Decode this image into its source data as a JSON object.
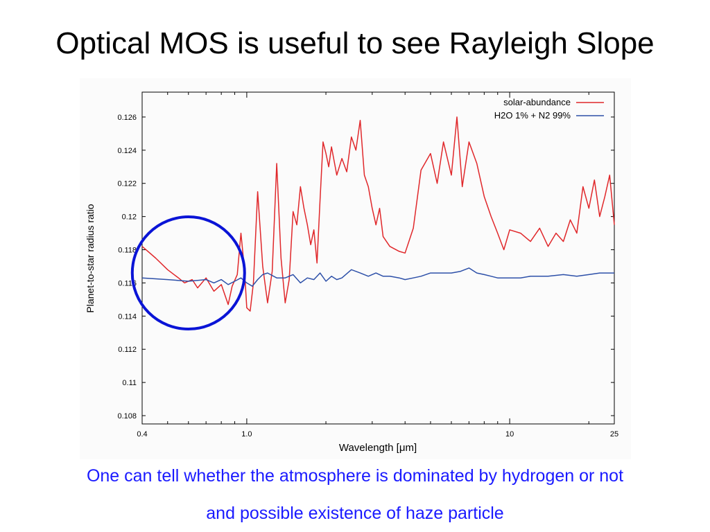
{
  "slide": {
    "title": "Optical MOS is useful to see Rayleigh Slope",
    "caption_line1": "One can tell whether the atmosphere is dominated by hydrogen or not",
    "caption_line2": "and possible existence of haze particle"
  },
  "colors": {
    "red_series": "#e0272a",
    "blue_series": "#2c4fa8",
    "highlight_circle": "#0a14d6",
    "caption": "#1a1aff"
  },
  "chart_data": {
    "type": "line",
    "xscale": "log",
    "xlabel": "Wavelength [μm]",
    "ylabel": "Planet-to-star radius ratio",
    "xlim": [
      0.4,
      25
    ],
    "ylim": [
      0.1075,
      0.1275
    ],
    "xticks": [
      0.4,
      1.0,
      10,
      25
    ],
    "xtick_labels": [
      "0.4",
      "1.0",
      "10",
      "25"
    ],
    "yticks": [
      0.108,
      0.11,
      0.112,
      0.114,
      0.116,
      0.118,
      0.12,
      0.122,
      0.124,
      0.126
    ],
    "ytick_labels": [
      "0.108",
      "0.11",
      "0.112",
      "0.114",
      "0.116",
      "0.118",
      "0.12",
      "0.122",
      "0.124",
      "0.126"
    ],
    "grid": false,
    "legend_position": "top-right",
    "series": [
      {
        "name": "solar-abundance",
        "color": "#e0272a",
        "x": [
          0.4,
          0.45,
          0.5,
          0.55,
          0.58,
          0.62,
          0.65,
          0.7,
          0.75,
          0.8,
          0.85,
          0.88,
          0.92,
          0.95,
          0.98,
          1.0,
          1.03,
          1.06,
          1.1,
          1.15,
          1.2,
          1.25,
          1.3,
          1.35,
          1.4,
          1.45,
          1.5,
          1.55,
          1.6,
          1.65,
          1.7,
          1.75,
          1.8,
          1.85,
          1.9,
          1.95,
          2.0,
          2.05,
          2.1,
          2.2,
          2.3,
          2.4,
          2.5,
          2.6,
          2.7,
          2.8,
          2.9,
          3.0,
          3.1,
          3.2,
          3.3,
          3.5,
          3.8,
          4.0,
          4.3,
          4.6,
          5.0,
          5.3,
          5.6,
          6.0,
          6.3,
          6.6,
          7.0,
          7.5,
          8.0,
          8.5,
          9.0,
          9.5,
          10.0,
          11.0,
          12.0,
          13.0,
          14.0,
          15.0,
          16.0,
          17.0,
          18.0,
          19.0,
          20.0,
          21.0,
          22.0,
          23.0,
          24.0,
          25.0
        ],
        "y": [
          0.1182,
          0.1175,
          0.1168,
          0.1163,
          0.116,
          0.1162,
          0.1157,
          0.1163,
          0.1155,
          0.1159,
          0.1147,
          0.1158,
          0.1165,
          0.119,
          0.1168,
          0.1145,
          0.1143,
          0.116,
          0.1215,
          0.117,
          0.1148,
          0.1167,
          0.1232,
          0.1175,
          0.1148,
          0.1162,
          0.1203,
          0.1195,
          0.1218,
          0.1205,
          0.1195,
          0.1183,
          0.1192,
          0.1172,
          0.121,
          0.1245,
          0.1238,
          0.123,
          0.1242,
          0.1225,
          0.1235,
          0.1227,
          0.1248,
          0.124,
          0.1258,
          0.1225,
          0.1218,
          0.1205,
          0.1195,
          0.1205,
          0.1188,
          0.1182,
          0.1179,
          0.1178,
          0.1193,
          0.1228,
          0.1238,
          0.122,
          0.1245,
          0.1225,
          0.126,
          0.1218,
          0.1245,
          0.1232,
          0.1212,
          0.12,
          0.119,
          0.118,
          0.1192,
          0.119,
          0.1185,
          0.1193,
          0.1182,
          0.119,
          0.1185,
          0.1198,
          0.119,
          0.1218,
          0.1205,
          0.1222,
          0.12,
          0.1212,
          0.1225,
          0.1195
        ]
      },
      {
        "name": "H2O 1% + N2 99%",
        "color": "#2c4fa8",
        "x": [
          0.4,
          0.5,
          0.6,
          0.7,
          0.75,
          0.8,
          0.85,
          0.9,
          0.95,
          1.0,
          1.05,
          1.1,
          1.15,
          1.2,
          1.3,
          1.4,
          1.5,
          1.6,
          1.7,
          1.8,
          1.9,
          2.0,
          2.1,
          2.2,
          2.3,
          2.5,
          2.7,
          2.9,
          3.1,
          3.3,
          3.5,
          3.8,
          4.0,
          4.3,
          4.6,
          5.0,
          5.5,
          6.0,
          6.5,
          7.0,
          7.5,
          8.0,
          8.5,
          9.0,
          10.0,
          11.0,
          12.0,
          14.0,
          16.0,
          18.0,
          20.0,
          22.0,
          25.0
        ],
        "y": [
          0.1163,
          0.1162,
          0.1161,
          0.1162,
          0.116,
          0.1162,
          0.1159,
          0.1161,
          0.1163,
          0.116,
          0.1158,
          0.1162,
          0.1165,
          0.1166,
          0.1163,
          0.1163,
          0.1165,
          0.116,
          0.1163,
          0.1162,
          0.1166,
          0.1161,
          0.1164,
          0.1162,
          0.1163,
          0.1168,
          0.1166,
          0.1164,
          0.1166,
          0.1164,
          0.1164,
          0.1163,
          0.1162,
          0.1163,
          0.1164,
          0.1166,
          0.1166,
          0.1166,
          0.1167,
          0.1169,
          0.1166,
          0.1165,
          0.1164,
          0.1163,
          0.1163,
          0.1163,
          0.1164,
          0.1164,
          0.1165,
          0.1164,
          0.1165,
          0.1166,
          0.1166
        ]
      }
    ],
    "annotation": {
      "type": "circle",
      "center_x": 0.6,
      "center_y": 0.1166,
      "color": "#0a14d6"
    }
  }
}
